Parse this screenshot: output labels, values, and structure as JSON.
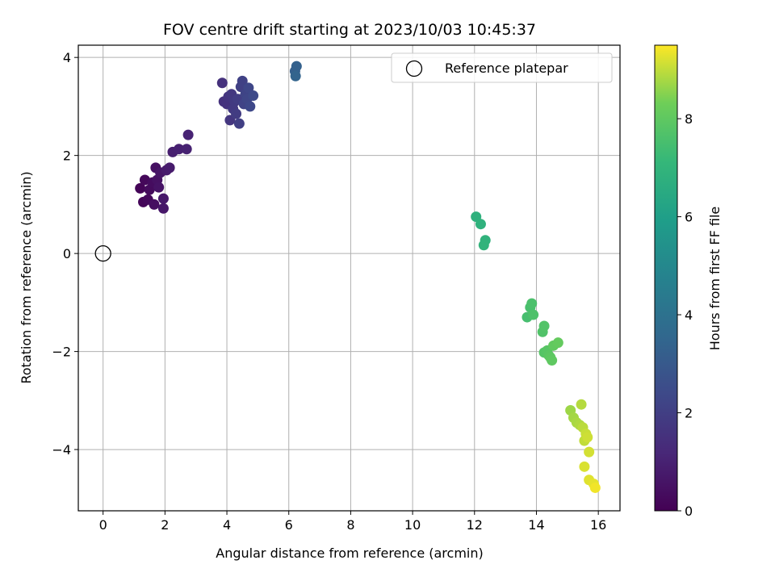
{
  "chart_data": {
    "type": "scatter",
    "title": "FOV centre drift starting at 2023/10/03 10:45:37",
    "xlabel": "Angular distance from reference (arcmin)",
    "ylabel": "Rotation from reference (arcmin)",
    "xlim": [
      -0.8,
      16.7
    ],
    "ylim": [
      -5.25,
      4.25
    ],
    "xticks": [
      0,
      2,
      4,
      6,
      8,
      10,
      12,
      14,
      16
    ],
    "yticks": [
      -4,
      -2,
      0,
      2,
      4
    ],
    "grid": true,
    "legend": {
      "placement": "top-right",
      "entries": [
        "Reference platepar"
      ]
    },
    "reference_point": {
      "x": 0,
      "y": 0,
      "marker": "open-circle"
    },
    "colorbar": {
      "label": "Hours from first FF file",
      "colormap": "viridis",
      "range": [
        0,
        9.5
      ],
      "ticks": [
        0,
        2,
        4,
        6,
        8
      ]
    },
    "points": [
      {
        "x": 1.2,
        "y": 1.33,
        "c": 0.1
      },
      {
        "x": 1.3,
        "y": 1.05,
        "c": 0.15
      },
      {
        "x": 1.35,
        "y": 1.5,
        "c": 0.2
      },
      {
        "x": 1.45,
        "y": 1.1,
        "c": 0.25
      },
      {
        "x": 1.5,
        "y": 1.3,
        "c": 0.3
      },
      {
        "x": 1.6,
        "y": 1.45,
        "c": 0.35
      },
      {
        "x": 1.65,
        "y": 1.0,
        "c": 0.4
      },
      {
        "x": 1.7,
        "y": 1.75,
        "c": 0.45
      },
      {
        "x": 1.75,
        "y": 1.5,
        "c": 0.5
      },
      {
        "x": 1.8,
        "y": 1.35,
        "c": 0.55
      },
      {
        "x": 1.85,
        "y": 1.65,
        "c": 0.6
      },
      {
        "x": 1.95,
        "y": 0.92,
        "c": 0.65
      },
      {
        "x": 1.95,
        "y": 1.12,
        "c": 0.7
      },
      {
        "x": 2.05,
        "y": 1.7,
        "c": 0.75
      },
      {
        "x": 2.15,
        "y": 1.75,
        "c": 0.8
      },
      {
        "x": 2.25,
        "y": 2.07,
        "c": 0.9
      },
      {
        "x": 2.45,
        "y": 2.13,
        "c": 0.95
      },
      {
        "x": 2.7,
        "y": 2.13,
        "c": 1.0
      },
      {
        "x": 2.75,
        "y": 2.42,
        "c": 1.05
      },
      {
        "x": 3.85,
        "y": 3.48,
        "c": 1.5
      },
      {
        "x": 3.9,
        "y": 3.1,
        "c": 1.55
      },
      {
        "x": 4.0,
        "y": 3.05,
        "c": 1.6
      },
      {
        "x": 4.05,
        "y": 3.2,
        "c": 1.65
      },
      {
        "x": 4.1,
        "y": 2.72,
        "c": 1.7
      },
      {
        "x": 4.15,
        "y": 3.25,
        "c": 1.75
      },
      {
        "x": 4.2,
        "y": 2.95,
        "c": 1.8
      },
      {
        "x": 4.25,
        "y": 3.1,
        "c": 1.85
      },
      {
        "x": 4.3,
        "y": 2.85,
        "c": 1.9
      },
      {
        "x": 4.35,
        "y": 3.15,
        "c": 1.95
      },
      {
        "x": 4.4,
        "y": 2.65,
        "c": 2.0
      },
      {
        "x": 4.45,
        "y": 3.4,
        "c": 2.05
      },
      {
        "x": 4.5,
        "y": 3.52,
        "c": 2.1
      },
      {
        "x": 4.55,
        "y": 3.05,
        "c": 2.15
      },
      {
        "x": 4.6,
        "y": 3.25,
        "c": 2.2
      },
      {
        "x": 4.65,
        "y": 3.15,
        "c": 2.25
      },
      {
        "x": 4.7,
        "y": 3.38,
        "c": 2.3
      },
      {
        "x": 4.75,
        "y": 3.0,
        "c": 2.35
      },
      {
        "x": 4.85,
        "y": 3.22,
        "c": 2.4
      },
      {
        "x": 6.2,
        "y": 3.72,
        "c": 3.2
      },
      {
        "x": 6.25,
        "y": 3.82,
        "c": 3.3
      },
      {
        "x": 6.22,
        "y": 3.62,
        "c": 3.4
      },
      {
        "x": 12.05,
        "y": 0.75,
        "c": 6.8
      },
      {
        "x": 12.2,
        "y": 0.6,
        "c": 6.85
      },
      {
        "x": 12.35,
        "y": 0.27,
        "c": 6.9
      },
      {
        "x": 12.3,
        "y": 0.17,
        "c": 6.95
      },
      {
        "x": 13.7,
        "y": -1.3,
        "c": 7.5
      },
      {
        "x": 13.8,
        "y": -1.1,
        "c": 7.55
      },
      {
        "x": 13.85,
        "y": -1.02,
        "c": 7.6
      },
      {
        "x": 13.9,
        "y": -1.25,
        "c": 7.65
      },
      {
        "x": 14.2,
        "y": -1.6,
        "c": 7.7
      },
      {
        "x": 14.25,
        "y": -1.48,
        "c": 7.75
      },
      {
        "x": 14.25,
        "y": -2.02,
        "c": 7.8
      },
      {
        "x": 14.35,
        "y": -1.98,
        "c": 7.85
      },
      {
        "x": 14.4,
        "y": -2.08,
        "c": 7.9
      },
      {
        "x": 14.45,
        "y": -2.12,
        "c": 7.95
      },
      {
        "x": 14.5,
        "y": -2.18,
        "c": 8.0
      },
      {
        "x": 14.55,
        "y": -1.88,
        "c": 8.05
      },
      {
        "x": 14.7,
        "y": -1.82,
        "c": 8.1
      },
      {
        "x": 15.1,
        "y": -3.2,
        "c": 8.7
      },
      {
        "x": 15.2,
        "y": -3.35,
        "c": 8.75
      },
      {
        "x": 15.3,
        "y": -3.45,
        "c": 8.8
      },
      {
        "x": 15.4,
        "y": -3.5,
        "c": 8.85
      },
      {
        "x": 15.45,
        "y": -3.08,
        "c": 8.9
      },
      {
        "x": 15.5,
        "y": -3.55,
        "c": 8.95
      },
      {
        "x": 15.55,
        "y": -3.82,
        "c": 9.0
      },
      {
        "x": 15.6,
        "y": -3.68,
        "c": 9.05
      },
      {
        "x": 15.65,
        "y": -3.75,
        "c": 9.1
      },
      {
        "x": 15.7,
        "y": -4.05,
        "c": 9.15
      },
      {
        "x": 15.55,
        "y": -4.35,
        "c": 9.2
      },
      {
        "x": 15.7,
        "y": -4.62,
        "c": 9.25
      },
      {
        "x": 15.85,
        "y": -4.7,
        "c": 9.3
      },
      {
        "x": 15.9,
        "y": -4.78,
        "c": 9.4
      }
    ]
  }
}
